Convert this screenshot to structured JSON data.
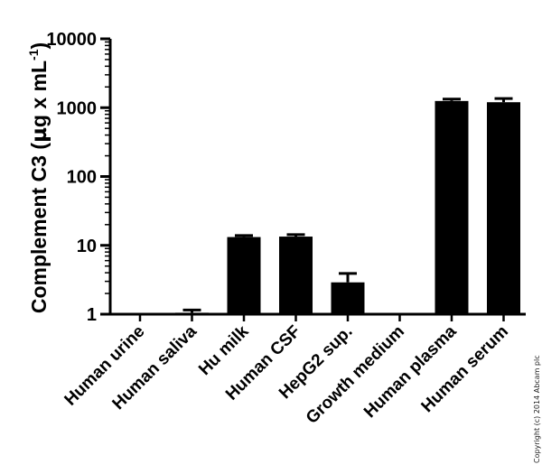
{
  "chart_data": {
    "type": "bar",
    "categories": [
      "Human urine",
      "Human saliva",
      "Hu milk",
      "Human CSF",
      "HepG2 sup.",
      "Growth medium",
      "Human plasma",
      "Human serum"
    ],
    "values": [
      1.0,
      1.05,
      13.2,
      13.4,
      2.9,
      1.0,
      1250,
      1200
    ],
    "error_upper": [
      1.0,
      1.15,
      13.9,
      14.3,
      3.9,
      1.0,
      1330,
      1360
    ],
    "ylabel_main": "Complement C3 (",
    "ylabel_mu": "µ",
    "ylabel_rest": "g x mL",
    "ylabel_sup": "-1",
    "ylabel_close": ")",
    "xlabel": "",
    "title": "",
    "yscale": "log",
    "ylim": [
      1,
      10000
    ],
    "yticks": [
      "1",
      "10",
      "100",
      "1000",
      "10000"
    ],
    "bar_color": "#000000",
    "grid": false,
    "legend": "none"
  },
  "copyright": "Copyright (c) 2014 Abcam plc"
}
